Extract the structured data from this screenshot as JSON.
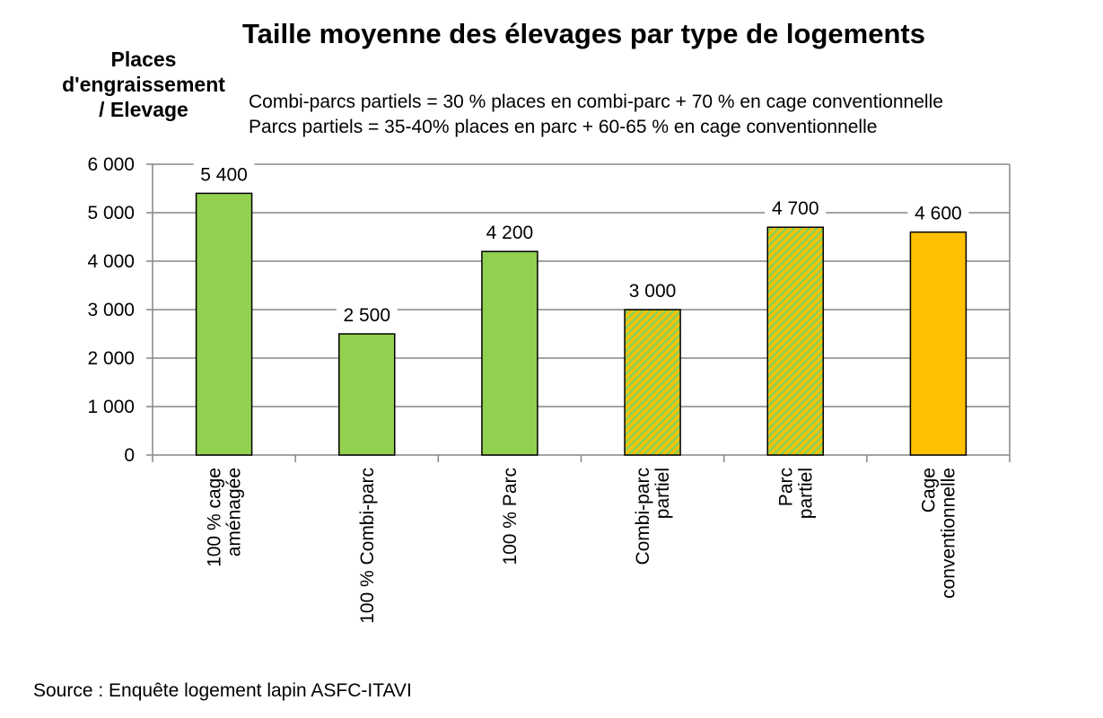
{
  "title": "Taille moyenne des élevages par type de logements",
  "notes": [
    "Combi-parcs partiels = 30 % places en combi-parc + 70 % en cage conventionnelle",
    "Parcs partiels = 35-40% places en parc + 60-65 % en cage conventionnelle"
  ],
  "source": "Source : Enquête logement lapin ASFC-ITAVI",
  "chart_data": {
    "type": "bar",
    "title": "Taille moyenne des élevages par type de logements",
    "ylabel": [
      "Places",
      "d'engraissement",
      "/ Elevage"
    ],
    "xlabel": "",
    "ylim": [
      0,
      6000
    ],
    "yticks": [
      0,
      1000,
      2000,
      3000,
      4000,
      5000,
      6000
    ],
    "ytick_labels": [
      "0",
      "1 000",
      "2 000",
      "3 000",
      "4 000",
      "5 000",
      "6 000"
    ],
    "grid": "horizontal",
    "categories": [
      [
        "100 % cage",
        "aménagée"
      ],
      [
        "100 % Combi-parc"
      ],
      [
        "100 % Parc"
      ],
      [
        "Combi-parc",
        "partiel"
      ],
      [
        "Parc",
        "partiel"
      ],
      [
        "Cage",
        "conventionnelle"
      ]
    ],
    "values": [
      5400,
      2500,
      4200,
      3000,
      4700,
      4600
    ],
    "value_labels": [
      "5 400",
      "2 500",
      "4 200",
      "3 000",
      "4 700",
      "4 600"
    ],
    "bar_styles": [
      "solid-green",
      "solid-green",
      "solid-green",
      "hatched-green-orange",
      "hatched-green-orange",
      "solid-orange"
    ],
    "colors": {
      "green": "#92d050",
      "orange": "#ffc000",
      "grid": "#868686"
    }
  }
}
